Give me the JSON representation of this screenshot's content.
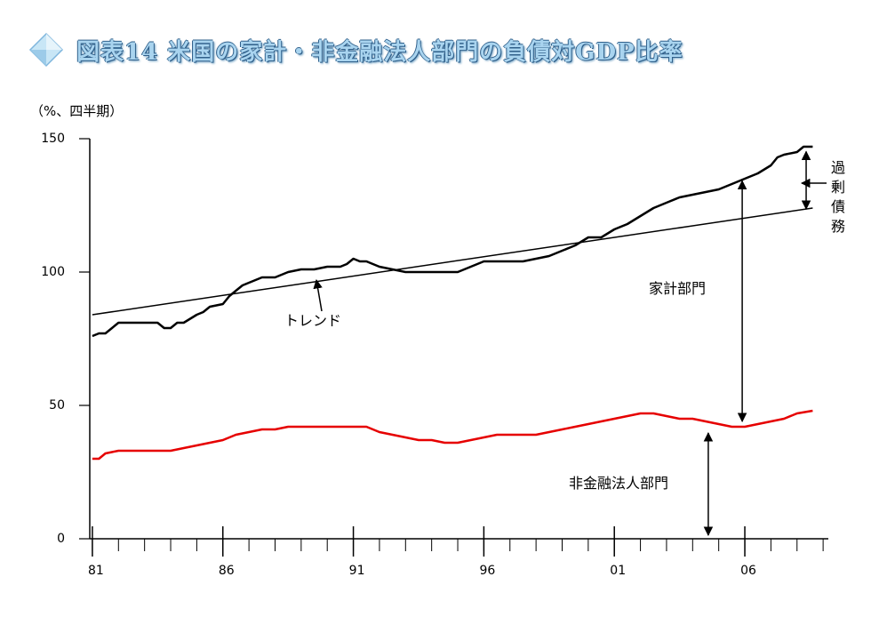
{
  "title": "図表14 米国の家計・非金融法人部門の負債対GDP比率",
  "title_color": "#a9d4ef",
  "title_outline_color": "#2f5f8a",
  "icon": "diamond-icon",
  "chart_data": {
    "type": "line",
    "unit_label": "（%、四半期）",
    "ylim": [
      0,
      150
    ],
    "yticks": [
      0,
      50,
      100,
      150
    ],
    "xlim": [
      1980.9,
      2009.2
    ],
    "xtick_labels": [
      "81",
      "86",
      "91",
      "96",
      "01",
      "06"
    ],
    "xtick_values": [
      1981,
      1986,
      1991,
      1996,
      2001,
      2006
    ],
    "grid": false,
    "series": [
      {
        "name": "家計部門",
        "color": "#000000",
        "x": [
          1981.0,
          1981.25,
          1981.5,
          1981.75,
          1982.0,
          1982.5,
          1983.0,
          1983.5,
          1983.75,
          1984.0,
          1984.25,
          1984.5,
          1985.0,
          1985.25,
          1985.5,
          1986.0,
          1986.25,
          1986.5,
          1986.75,
          1987.0,
          1987.5,
          1988.0,
          1988.5,
          1989.0,
          1989.5,
          1990.0,
          1990.5,
          1990.75,
          1991.0,
          1991.25,
          1991.5,
          1992.0,
          1992.5,
          1993.0,
          1993.5,
          1994.0,
          1994.5,
          1995.0,
          1995.5,
          1996.0,
          1996.5,
          1997.0,
          1997.5,
          1998.0,
          1998.5,
          1999.0,
          1999.5,
          2000.0,
          2000.5,
          2001.0,
          2001.5,
          2002.0,
          2002.5,
          2003.0,
          2003.5,
          2004.0,
          2004.5,
          2005.0,
          2005.5,
          2006.0,
          2006.5,
          2007.0,
          2007.25,
          2007.5,
          2008.0,
          2008.25,
          2008.6
        ],
        "values": [
          76,
          77,
          77,
          79,
          81,
          81,
          81,
          81,
          79,
          79,
          81,
          81,
          84,
          85,
          87,
          88,
          91,
          93,
          95,
          96,
          98,
          98,
          100,
          101,
          101,
          102,
          102,
          103,
          105,
          104,
          104,
          102,
          101,
          100,
          100,
          100,
          100,
          100,
          102,
          104,
          104,
          104,
          104,
          105,
          106,
          108,
          110,
          113,
          113,
          116,
          118,
          121,
          124,
          126,
          128,
          129,
          130,
          131,
          133,
          135,
          137,
          140,
          143,
          144,
          145,
          147,
          147
        ]
      },
      {
        "name": "非金融法人部門",
        "color": "#e60000",
        "x": [
          1981.0,
          1981.25,
          1981.5,
          1982.0,
          1982.5,
          1983.0,
          1983.5,
          1984.0,
          1984.5,
          1985.0,
          1985.5,
          1986.0,
          1986.5,
          1987.0,
          1987.5,
          1988.0,
          1988.5,
          1989.0,
          1989.5,
          1990.0,
          1990.5,
          1991.0,
          1991.5,
          1992.0,
          1992.5,
          1993.0,
          1993.5,
          1994.0,
          1994.5,
          1995.0,
          1995.5,
          1996.0,
          1996.5,
          1997.0,
          1997.5,
          1998.0,
          1998.5,
          1999.0,
          1999.5,
          2000.0,
          2000.5,
          2001.0,
          2001.5,
          2002.0,
          2002.5,
          2003.0,
          2003.5,
          2004.0,
          2004.5,
          2005.0,
          2005.5,
          2006.0,
          2006.5,
          2007.0,
          2007.5,
          2008.0,
          2008.6
        ],
        "values": [
          30,
          30,
          32,
          33,
          33,
          33,
          33,
          33,
          34,
          35,
          36,
          37,
          39,
          40,
          41,
          41,
          42,
          42,
          42,
          42,
          42,
          42,
          42,
          40,
          39,
          38,
          37,
          37,
          36,
          36,
          37,
          38,
          39,
          39,
          39,
          39,
          40,
          41,
          42,
          43,
          44,
          45,
          46,
          47,
          47,
          46,
          45,
          45,
          44,
          43,
          42,
          42,
          43,
          44,
          45,
          47,
          48
        ]
      },
      {
        "name": "トレンド",
        "color": "#000000",
        "x": [
          1981.0,
          2008.6
        ],
        "values": [
          84,
          124
        ]
      }
    ],
    "annotations": {
      "trend_label": "トレンド",
      "household_label": "家計部門",
      "corporate_label": "非金融法人部門",
      "excess_label": "過剰債務"
    }
  }
}
